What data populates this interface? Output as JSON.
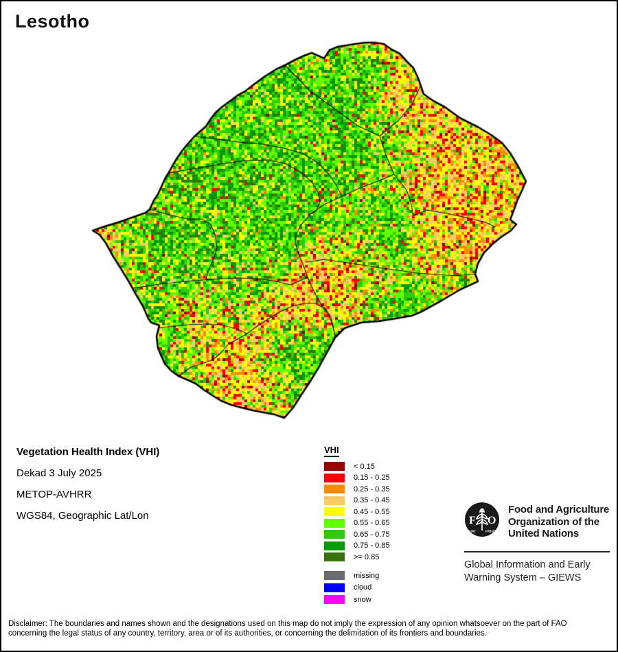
{
  "page": {
    "title": "Lesotho"
  },
  "info": {
    "product": "Vegetation Health Index (VHI)",
    "dekad": "Dekad 3 July 2025",
    "sensor": "METOP-AVHRR",
    "projection": "WGS84, Geographic Lat/Lon"
  },
  "legend": {
    "title": "VHI"
  },
  "fao": {
    "logo_letter_f": "F",
    "logo_letter_a": "A",
    "logo_letter_o": "O",
    "motto_left": "FIAT",
    "motto_right": "PANIS",
    "org_line1": "Food and Agriculture",
    "org_line2": "Organization of the",
    "org_line3": "United Nations",
    "giews_line1": "Global Information and Early",
    "giews_line2": "Warning System – GIEWS"
  },
  "disclaimer": {
    "line1": "Disclaimer: The boundaries and names shown and the designations used on this map do not imply the expression of any opinion whatsoever on the part of FAO",
    "line2": "concerning the legal status of any country, territory, area or of its authorities, or concerning the delimitation of its frontiers and boundaries."
  },
  "map": {
    "cell_size": 4,
    "seed": 7,
    "outline_color": "#000000",
    "district_line_color": "#0a0a0a",
    "classes": [
      {
        "label": "< 0.15",
        "color": "#9a0000"
      },
      {
        "label": "0.15 - 0.25",
        "color": "#fb0000"
      },
      {
        "label": "0.25 - 0.35",
        "color": "#ff8c00"
      },
      {
        "label": "0.35 - 0.45",
        "color": "#fcca69"
      },
      {
        "label": "0.45 - 0.55",
        "color": "#ffff00"
      },
      {
        "label": "0.55 - 0.65",
        "color": "#62ff00"
      },
      {
        "label": "0.65 - 0.75",
        "color": "#2ecc04"
      },
      {
        "label": "0.75 - 0.85",
        "color": "#089a08"
      },
      {
        "label": ">= 0.85",
        "color": "#3a700e"
      }
    ],
    "special": [
      {
        "label": "missing",
        "color": "#6b6b6b"
      },
      {
        "label": "cloud",
        "color": "#0000ff"
      },
      {
        "label": "snow",
        "color": "#ff00ff"
      }
    ],
    "weights": {
      "cool": [
        0.3,
        1,
        1,
        3,
        12,
        28,
        27,
        20,
        7.7
      ],
      "mid": [
        1.5,
        5,
        6,
        11,
        24,
        25,
        17,
        8,
        2.5
      ],
      "warm": [
        4,
        13,
        16,
        26,
        29,
        7,
        3.5,
        1.2,
        0.3
      ]
    },
    "noise": {
      "base": 0.34,
      "large_scale": 58,
      "large_amp": 0.5,
      "small_scale": 15,
      "small_amp": 0.5
    },
    "hotspots": [
      [
        690,
        215,
        115,
        0.95
      ],
      [
        600,
        138,
        55,
        0.6
      ],
      [
        737,
        300,
        70,
        0.8
      ],
      [
        655,
        300,
        60,
        0.55
      ],
      [
        670,
        355,
        65,
        0.55
      ],
      [
        470,
        408,
        55,
        0.5
      ],
      [
        428,
        448,
        60,
        0.55
      ],
      [
        515,
        410,
        55,
        0.5
      ],
      [
        335,
        525,
        70,
        0.55
      ],
      [
        372,
        562,
        45,
        0.45
      ],
      [
        158,
        350,
        48,
        0.5
      ],
      [
        282,
        452,
        60,
        0.35
      ]
    ],
    "greenzones": [
      [
        380,
        230,
        110,
        0.75
      ],
      [
        310,
        292,
        55,
        0.4
      ],
      [
        485,
        170,
        55,
        0.45
      ],
      [
        470,
        320,
        45,
        0.3
      ],
      [
        570,
        330,
        45,
        0.35
      ],
      [
        470,
        555,
        70,
        0.55
      ],
      [
        590,
        445,
        45,
        0.4
      ],
      [
        440,
        520,
        50,
        0.35
      ],
      [
        250,
        390,
        45,
        0.3
      ],
      [
        530,
        105,
        45,
        0.35
      ]
    ],
    "outline": [
      [
        557,
        62
      ],
      [
        568,
        70
      ],
      [
        580,
        76
      ],
      [
        591,
        88
      ],
      [
        600,
        97
      ],
      [
        607,
        112
      ],
      [
        615,
        135
      ],
      [
        629,
        145
      ],
      [
        646,
        154
      ],
      [
        668,
        170
      ],
      [
        694,
        183
      ],
      [
        714,
        195
      ],
      [
        729,
        206
      ],
      [
        741,
        221
      ],
      [
        753,
        241
      ],
      [
        764,
        262
      ],
      [
        757,
        278
      ],
      [
        751,
        291
      ],
      [
        746,
        305
      ],
      [
        741,
        318
      ],
      [
        750,
        325
      ],
      [
        742,
        334
      ],
      [
        727,
        344
      ],
      [
        716,
        353
      ],
      [
        703,
        366
      ],
      [
        694,
        382
      ],
      [
        690,
        397
      ],
      [
        694,
        408
      ],
      [
        668,
        420
      ],
      [
        641,
        436
      ],
      [
        612,
        452
      ],
      [
        598,
        458
      ],
      [
        575,
        462
      ],
      [
        550,
        466
      ],
      [
        524,
        468
      ],
      [
        500,
        476
      ],
      [
        486,
        490
      ],
      [
        476,
        508
      ],
      [
        463,
        532
      ],
      [
        449,
        555
      ],
      [
        437,
        573
      ],
      [
        425,
        592
      ],
      [
        412,
        607
      ],
      [
        398,
        602
      ],
      [
        382,
        599
      ],
      [
        366,
        596
      ],
      [
        350,
        592
      ],
      [
        335,
        588
      ],
      [
        320,
        582
      ],
      [
        307,
        574
      ],
      [
        295,
        566
      ],
      [
        283,
        557
      ],
      [
        270,
        551
      ],
      [
        258,
        546
      ],
      [
        247,
        538
      ],
      [
        238,
        528
      ],
      [
        233,
        517
      ],
      [
        228,
        505
      ],
      [
        226,
        488
      ],
      [
        230,
        472
      ],
      [
        218,
        468
      ],
      [
        214,
        462
      ],
      [
        206,
        444
      ],
      [
        196,
        427
      ],
      [
        186,
        409
      ],
      [
        175,
        391
      ],
      [
        163,
        372
      ],
      [
        152,
        352
      ],
      [
        143,
        340
      ],
      [
        133,
        334
      ],
      [
        150,
        328
      ],
      [
        170,
        322
      ],
      [
        190,
        315
      ],
      [
        210,
        308
      ],
      [
        216,
        303
      ],
      [
        222,
        290
      ],
      [
        228,
        281
      ],
      [
        234,
        268
      ],
      [
        239,
        257
      ],
      [
        244,
        249
      ],
      [
        250,
        238
      ],
      [
        256,
        228
      ],
      [
        263,
        218
      ],
      [
        271,
        208
      ],
      [
        281,
        197
      ],
      [
        291,
        188
      ],
      [
        298,
        182
      ],
      [
        305,
        171
      ],
      [
        312,
        162
      ],
      [
        321,
        154
      ],
      [
        332,
        146
      ],
      [
        344,
        137
      ],
      [
        355,
        131
      ],
      [
        369,
        120
      ],
      [
        384,
        109
      ],
      [
        400,
        99
      ],
      [
        413,
        93
      ],
      [
        428,
        85
      ],
      [
        441,
        79
      ],
      [
        452,
        75
      ],
      [
        461,
        79
      ],
      [
        470,
        83
      ],
      [
        478,
        71
      ],
      [
        490,
        66
      ],
      [
        503,
        64
      ],
      [
        515,
        62
      ],
      [
        530,
        60
      ],
      [
        543,
        60
      ]
    ],
    "districts": [
      [
        [
          413,
          93
        ],
        [
          450,
          131
        ],
        [
          486,
          157
        ],
        [
          520,
          182
        ],
        [
          551,
          196
        ],
        [
          578,
          174
        ],
        [
          598,
          150
        ],
        [
          611,
          122
        ]
      ],
      [
        [
          551,
          196
        ],
        [
          560,
          224
        ],
        [
          572,
          252
        ],
        [
          590,
          275
        ],
        [
          596,
          292
        ],
        [
          600,
          312
        ],
        [
          620,
          304
        ],
        [
          643,
          308
        ],
        [
          663,
          312
        ],
        [
          685,
          317
        ],
        [
          705,
          322
        ],
        [
          720,
          329
        ]
      ],
      [
        [
          572,
          252
        ],
        [
          548,
          262
        ],
        [
          522,
          272
        ],
        [
          496,
          284
        ],
        [
          470,
          296
        ],
        [
          450,
          310
        ],
        [
          436,
          326
        ],
        [
          429,
          340
        ],
        [
          428,
          352
        ]
      ],
      [
        [
          428,
          352
        ],
        [
          433,
          368
        ],
        [
          440,
          385
        ],
        [
          446,
          402
        ],
        [
          452,
          416
        ],
        [
          459,
          430
        ],
        [
          467,
          444
        ],
        [
          477,
          458
        ],
        [
          483,
          472
        ],
        [
          486,
          490
        ]
      ],
      [
        [
          243,
          250
        ],
        [
          285,
          243
        ],
        [
          320,
          237
        ],
        [
          355,
          232
        ],
        [
          390,
          231
        ],
        [
          415,
          237
        ],
        [
          436,
          249
        ],
        [
          452,
          263
        ],
        [
          461,
          278
        ],
        [
          464,
          292
        ],
        [
          458,
          306
        ],
        [
          450,
          310
        ]
      ],
      [
        [
          272,
          196
        ],
        [
          310,
          200
        ],
        [
          345,
          205
        ],
        [
          380,
          208
        ],
        [
          412,
          214
        ],
        [
          440,
          222
        ],
        [
          462,
          236
        ],
        [
          477,
          252
        ],
        [
          488,
          268
        ],
        [
          496,
          284
        ]
      ],
      [
        [
          191,
          418
        ],
        [
          230,
          412
        ],
        [
          268,
          408
        ],
        [
          306,
          405
        ],
        [
          344,
          403
        ],
        [
          375,
          404
        ],
        [
          400,
          408
        ],
        [
          421,
          413
        ],
        [
          446,
          402
        ]
      ],
      [
        [
          216,
          303
        ],
        [
          245,
          311
        ],
        [
          270,
          317
        ],
        [
          292,
          317
        ],
        [
          305,
          325
        ],
        [
          312,
          342
        ],
        [
          314,
          360
        ],
        [
          308,
          378
        ],
        [
          301,
          393
        ],
        [
          298,
          405
        ],
        [
          306,
          405
        ]
      ],
      [
        [
          218,
          477
        ],
        [
          246,
          474
        ],
        [
          274,
          471
        ],
        [
          300,
          470
        ],
        [
          324,
          472
        ],
        [
          344,
          478
        ],
        [
          358,
          484
        ]
      ],
      [
        [
          258,
          546
        ],
        [
          276,
          533
        ],
        [
          292,
          528
        ],
        [
          308,
          522
        ],
        [
          320,
          512
        ],
        [
          330,
          500
        ],
        [
          344,
          492
        ],
        [
          358,
          484
        ],
        [
          374,
          472
        ],
        [
          390,
          462
        ],
        [
          406,
          452
        ],
        [
          424,
          444
        ],
        [
          442,
          440
        ],
        [
          458,
          440
        ],
        [
          472,
          448
        ],
        [
          480,
          460
        ],
        [
          483,
          474
        ],
        [
          486,
          490
        ]
      ],
      [
        [
          443,
          380
        ],
        [
          470,
          376
        ],
        [
          498,
          380
        ],
        [
          524,
          384
        ],
        [
          550,
          388
        ],
        [
          578,
          392
        ],
        [
          606,
          396
        ],
        [
          635,
          398
        ],
        [
          662,
          400
        ],
        [
          690,
          397
        ]
      ]
    ]
  }
}
